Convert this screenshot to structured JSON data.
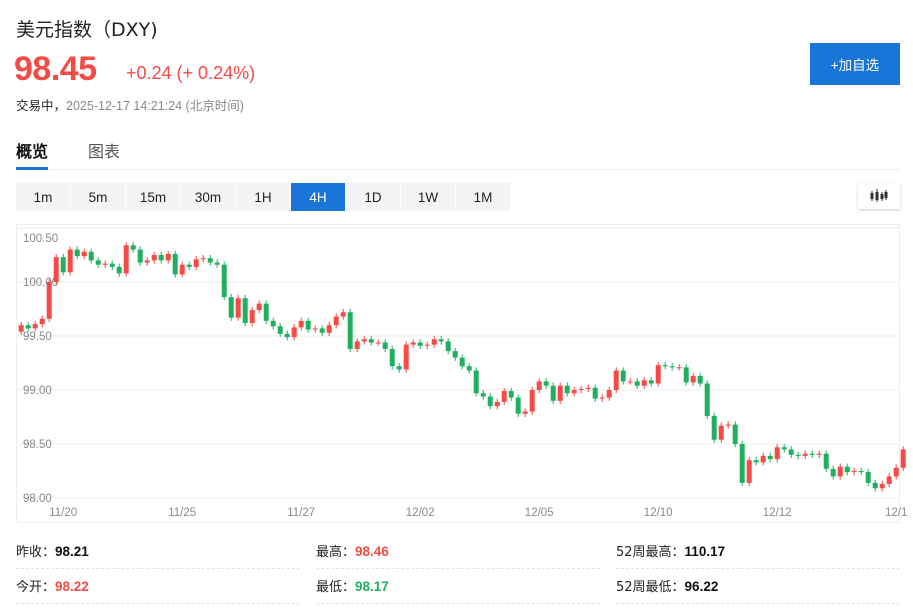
{
  "header": {
    "title": "美元指数（DXY)",
    "price": "98.45",
    "change": "+0.24 (+ 0.24%)",
    "status_label": "交易中，",
    "timestamp": "2025-12-17 14:21:24 (北京时间)",
    "add_button": "+加自选"
  },
  "tabs": [
    {
      "label": "概览",
      "active": true
    },
    {
      "label": "图表",
      "active": false
    }
  ],
  "intervals": [
    {
      "label": "1m"
    },
    {
      "label": "5m"
    },
    {
      "label": "15m"
    },
    {
      "label": "30m"
    },
    {
      "label": "1H"
    },
    {
      "label": "4H",
      "active": true
    },
    {
      "label": "1D"
    },
    {
      "label": "1W"
    },
    {
      "label": "1M"
    }
  ],
  "chart_type_icon": "candlestick-icon",
  "colors": {
    "up": "#f54a45",
    "down": "#1eb05f",
    "accent": "#1a75d8"
  },
  "chart_data": {
    "type": "candlestick",
    "interval": "4H",
    "ylim": [
      98.0,
      100.5
    ],
    "y_ticks": [
      "100.50",
      "100.00",
      "99.50",
      "99.00",
      "98.50",
      "98.00"
    ],
    "x_tick_labels": [
      "11/20",
      "11/25",
      "11/27",
      "12/02",
      "12/05",
      "12/10",
      "12/12",
      "12/1"
    ],
    "grid": true,
    "open": [
      99.54,
      99.6,
      99.57,
      99.61,
      99.66,
      100.0,
      100.23,
      100.09,
      100.3,
      100.24,
      100.28,
      100.2,
      100.16,
      100.17,
      100.14,
      100.08,
      100.34,
      100.3,
      100.18,
      100.2,
      100.25,
      100.2,
      100.26,
      100.07,
      100.16,
      100.14,
      100.21,
      100.22,
      100.18,
      100.16,
      99.86,
      99.67,
      99.85,
      99.62,
      99.74,
      99.8,
      99.64,
      99.59,
      99.52,
      99.49,
      99.58,
      99.64,
      99.56,
      99.57,
      99.53,
      99.6,
      99.68,
      99.72,
      99.38,
      99.45,
      99.47,
      99.44,
      99.44,
      99.38,
      99.22,
      99.19,
      99.42,
      99.44,
      99.41,
      99.42,
      99.47,
      99.45,
      99.36,
      99.3,
      99.22,
      99.18,
      98.97,
      98.94,
      98.85,
      98.89,
      98.99,
      98.93,
      98.78,
      98.8,
      99.0,
      99.08,
      99.04,
      98.9,
      99.04,
      98.97,
      99.0,
      99.01,
      99.02,
      98.92,
      98.93,
      99.0,
      99.18,
      99.08,
      99.08,
      99.04,
      99.09,
      99.06,
      99.23,
      99.22,
      99.21,
      99.21,
      99.07,
      99.13,
      99.06,
      98.76,
      98.54,
      98.67,
      98.68,
      98.5,
      98.14,
      98.35,
      98.33,
      98.39,
      98.36,
      98.47,
      98.45,
      98.4,
      98.39,
      98.41,
      98.4,
      98.41,
      98.27,
      98.2,
      98.29,
      98.24,
      98.25,
      98.24,
      98.14,
      98.09,
      98.13,
      98.2,
      98.28
    ],
    "close": [
      99.6,
      99.57,
      99.61,
      99.66,
      100.0,
      100.23,
      100.09,
      100.3,
      100.24,
      100.28,
      100.2,
      100.16,
      100.17,
      100.14,
      100.08,
      100.34,
      100.3,
      100.18,
      100.2,
      100.25,
      100.2,
      100.26,
      100.07,
      100.16,
      100.14,
      100.21,
      100.22,
      100.18,
      100.16,
      99.86,
      99.67,
      99.85,
      99.62,
      99.74,
      99.8,
      99.64,
      99.59,
      99.52,
      99.49,
      99.58,
      99.64,
      99.56,
      99.57,
      99.53,
      99.6,
      99.68,
      99.72,
      99.38,
      99.45,
      99.47,
      99.44,
      99.44,
      99.38,
      99.22,
      99.19,
      99.42,
      99.44,
      99.41,
      99.42,
      99.47,
      99.45,
      99.36,
      99.3,
      99.22,
      99.18,
      98.97,
      98.94,
      98.85,
      98.89,
      98.99,
      98.93,
      98.78,
      98.8,
      99.0,
      99.08,
      99.04,
      98.9,
      99.04,
      98.97,
      99.0,
      99.01,
      99.02,
      98.92,
      98.93,
      99.0,
      99.18,
      99.08,
      99.08,
      99.04,
      99.09,
      99.06,
      99.23,
      99.22,
      99.21,
      99.21,
      99.07,
      99.13,
      99.06,
      98.76,
      98.54,
      98.67,
      98.68,
      98.5,
      98.14,
      98.35,
      98.33,
      98.39,
      98.36,
      98.47,
      98.45,
      98.4,
      98.39,
      98.41,
      98.4,
      98.41,
      98.27,
      98.2,
      98.29,
      98.24,
      98.25,
      98.24,
      98.14,
      98.09,
      98.13,
      98.2,
      98.28,
      98.45
    ]
  },
  "stats": [
    {
      "label": "昨收：",
      "value": "98.21",
      "tone": "neutral"
    },
    {
      "label": "最高：",
      "value": "98.46",
      "tone": "up"
    },
    {
      "label": "52周最高：",
      "value": "110.17",
      "tone": "neutral"
    },
    {
      "label": "今开：",
      "value": "98.22",
      "tone": "up"
    },
    {
      "label": "最低：",
      "value": "98.17",
      "tone": "down"
    },
    {
      "label": "52周最低：",
      "value": "96.22",
      "tone": "neutral"
    }
  ]
}
